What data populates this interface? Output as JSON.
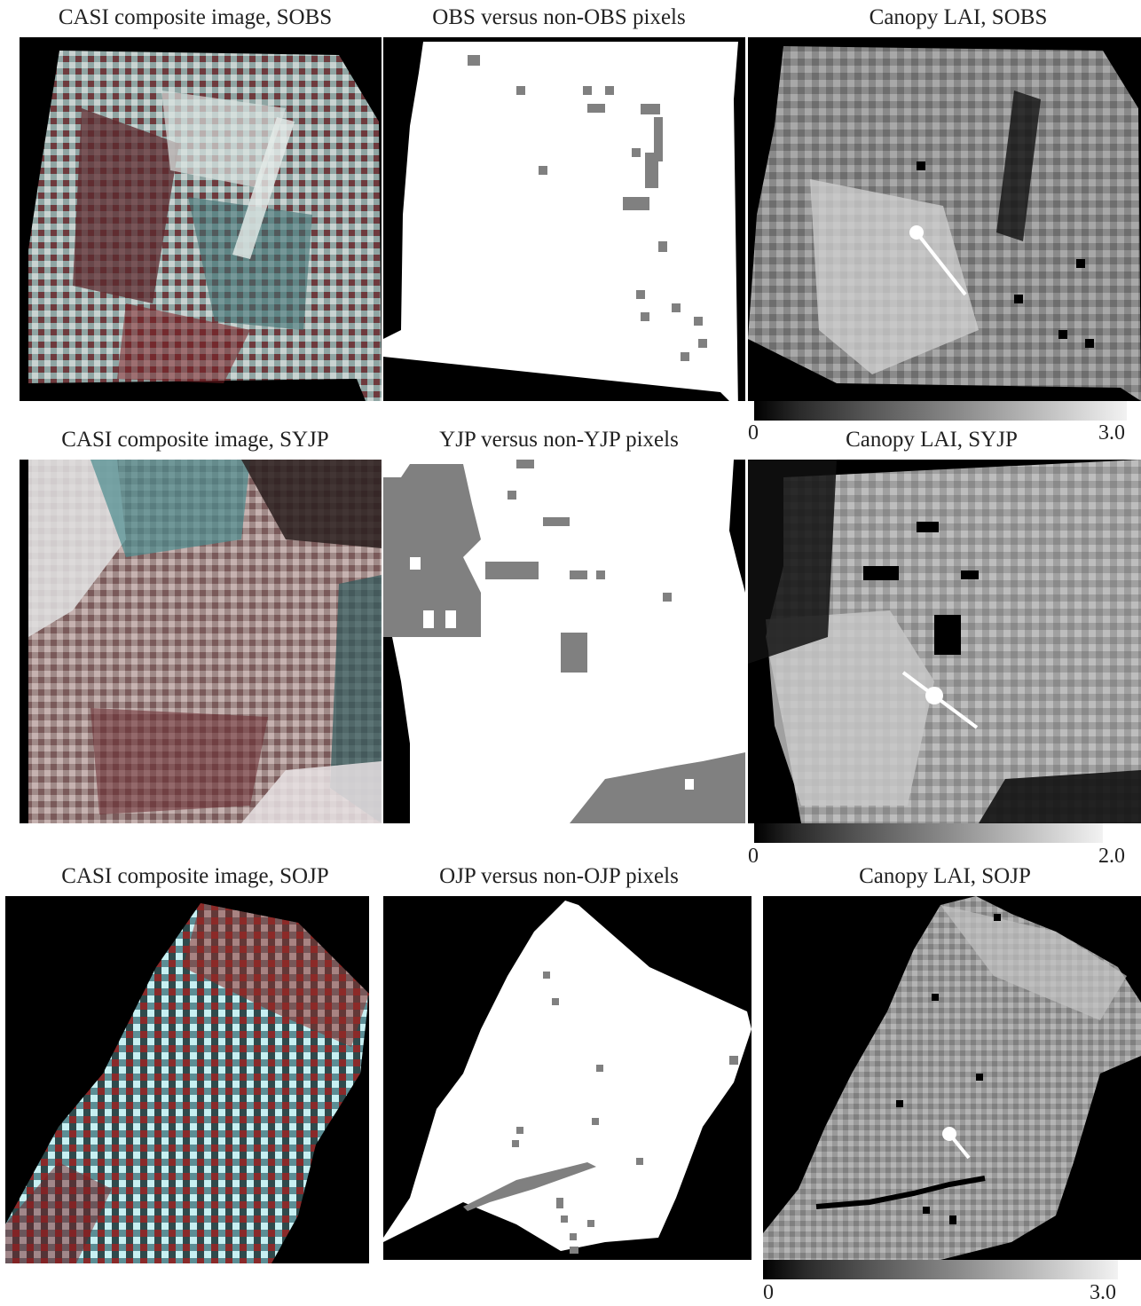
{
  "figure": {
    "rows": [
      {
        "site": "SOBS",
        "composite_title": "CASI composite image, SOBS",
        "mask_title": "OBS versus non-OBS pixels",
        "lai_title": "Canopy LAI, SOBS",
        "colorbar_min": "0",
        "colorbar_max": "3.0"
      },
      {
        "site": "SYJP",
        "composite_title": "CASI composite image, SYJP",
        "mask_title": "YJP versus non-YJP pixels",
        "lai_title": "Canopy LAI, SYJP",
        "colorbar_min": "0",
        "colorbar_max": "2.0"
      },
      {
        "site": "SOJP",
        "composite_title": "CASI composite image, SOJP",
        "mask_title": "OJP versus non-OJP pixels",
        "lai_title": "Canopy LAI, SOJP",
        "colorbar_min": "0",
        "colorbar_max": "3.0"
      }
    ],
    "colors": {
      "background": "#000000",
      "mask_target": "#ffffff",
      "mask_other": "#808080",
      "composite_red": "#7a1e22",
      "composite_cyan": "#5fb8bd",
      "transect_marker": "#ffffff"
    }
  }
}
